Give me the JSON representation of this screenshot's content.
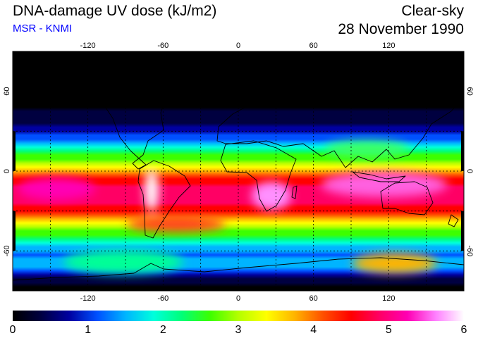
{
  "header": {
    "title": "DNA-damage UV dose (kJ/m2)",
    "subtitle": "MSR - KNMI",
    "mode": "Clear-sky",
    "date": "28 November 1990"
  },
  "colors": {
    "subtitle": "#0000ff",
    "frame": "#000000",
    "grid": "#000000",
    "coast": "#000000"
  },
  "map": {
    "lon_range": [
      -180,
      180
    ],
    "lat_range": [
      -90,
      90
    ],
    "lon_ticks": [
      -120,
      -60,
      0,
      60,
      120
    ],
    "lon_tick_labels": [
      "-120",
      "-60",
      "0",
      "60",
      "120"
    ],
    "lat_ticks": [
      60,
      0,
      -60
    ],
    "lat_tick_labels": [
      "60",
      "0",
      "-60"
    ],
    "gridlines": "dotted every 30°",
    "field": "DNA-damage UV dose",
    "field_range": [
      0,
      6
    ]
  },
  "colorbar": {
    "min": 0,
    "max": 6,
    "tick_labels": [
      "0",
      "1",
      "2",
      "3",
      "4",
      "5",
      "6"
    ],
    "colormap": [
      "#000000",
      "#000040",
      "#0000a0",
      "#0050ff",
      "#00b4ff",
      "#00ffdc",
      "#00ff78",
      "#3cff00",
      "#b4ff00",
      "#ffff00",
      "#ffb400",
      "#ff5000",
      "#ff0000",
      "#ff0064",
      "#ff00b4",
      "#ff80ff",
      "#ffffff"
    ]
  }
}
